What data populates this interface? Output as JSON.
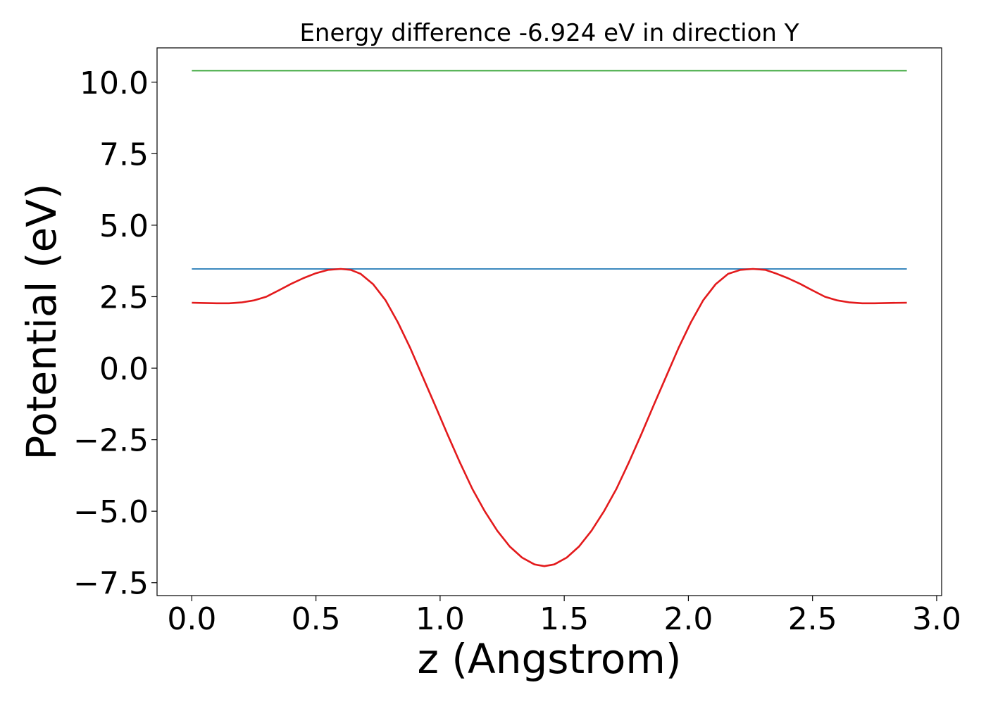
{
  "chart_data": {
    "type": "line",
    "title": "Energy difference -6.924 eV in direction Y",
    "xlabel": "z (Angstrom)",
    "ylabel": "Potential (eV)",
    "xlim": [
      -0.14,
      3.02
    ],
    "ylim": [
      -7.95,
      11.2
    ],
    "xticks": [
      0.0,
      0.5,
      1.0,
      1.5,
      2.0,
      2.5,
      3.0
    ],
    "xtick_labels": [
      "0.0",
      "0.5",
      "1.0",
      "1.5",
      "2.0",
      "2.5",
      "3.0"
    ],
    "yticks": [
      10.0,
      7.5,
      5.0,
      2.5,
      0.0,
      -2.5,
      -5.0,
      -7.5
    ],
    "ytick_labels": [
      "10.0",
      "7.5",
      "5.0",
      "2.5",
      "0.0",
      "−2.5",
      "−5.0",
      "−7.5"
    ],
    "grid": false,
    "legend": false,
    "series": [
      {
        "color": "#2ca02c",
        "x": [
          0.0,
          2.88
        ],
        "y": [
          10.4,
          10.4
        ]
      },
      {
        "color": "#1f77b4",
        "x": [
          0.0,
          2.88
        ],
        "y": [
          3.47,
          3.47
        ]
      },
      {
        "color": "#e31a1c",
        "x": [
          0.0,
          0.05,
          0.1,
          0.15,
          0.2,
          0.25,
          0.3,
          0.35,
          0.4,
          0.45,
          0.5,
          0.55,
          0.6,
          0.64,
          0.68,
          0.73,
          0.78,
          0.83,
          0.88,
          0.93,
          0.98,
          1.03,
          1.08,
          1.13,
          1.18,
          1.23,
          1.28,
          1.33,
          1.38,
          1.42,
          1.46,
          1.51,
          1.56,
          1.61,
          1.66,
          1.71,
          1.76,
          1.81,
          1.86,
          1.91,
          1.96,
          2.01,
          2.06,
          2.11,
          2.16,
          2.21,
          2.26,
          2.31,
          2.35,
          2.4,
          2.45,
          2.5,
          2.55,
          2.6,
          2.65,
          2.7,
          2.75,
          2.8,
          2.88
        ],
        "y": [
          2.29,
          2.28,
          2.27,
          2.27,
          2.3,
          2.37,
          2.5,
          2.72,
          2.95,
          3.15,
          3.32,
          3.44,
          3.47,
          3.44,
          3.3,
          2.94,
          2.38,
          1.6,
          0.7,
          -0.3,
          -1.3,
          -2.32,
          -3.3,
          -4.22,
          -5.0,
          -5.68,
          -6.23,
          -6.62,
          -6.86,
          -6.92,
          -6.86,
          -6.62,
          -6.23,
          -5.68,
          -5.0,
          -4.22,
          -3.3,
          -2.32,
          -1.3,
          -0.3,
          0.7,
          1.6,
          2.38,
          2.94,
          3.3,
          3.44,
          3.47,
          3.44,
          3.32,
          3.15,
          2.95,
          2.72,
          2.5,
          2.37,
          2.3,
          2.27,
          2.27,
          2.28,
          2.29
        ]
      }
    ]
  }
}
